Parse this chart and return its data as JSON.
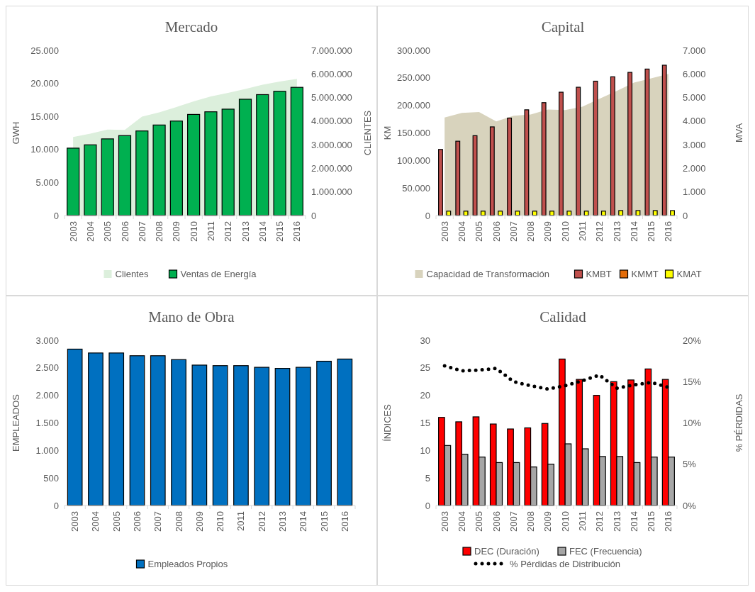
{
  "chart_data": [
    {
      "type": "bar",
      "title": "Mercado",
      "ylabel": "GWH",
      "y2label": "CLIENTES",
      "legend": "bottom",
      "categories": [
        "2003",
        "2004",
        "2005",
        "2006",
        "2007",
        "2008",
        "2009",
        "2010",
        "2011",
        "2012",
        "2013",
        "2014",
        "2015",
        "2016"
      ],
      "ylim": [
        0,
        25000
      ],
      "yticks": [
        {
          "value": 0,
          "label": "0"
        },
        {
          "value": 5000,
          "label": "5.000"
        },
        {
          "value": 10000,
          "label": "10.000"
        },
        {
          "value": 15000,
          "label": "15.000"
        },
        {
          "value": 20000,
          "label": "20.000"
        },
        {
          "value": 25000,
          "label": "25.000"
        }
      ],
      "y2lim": [
        0,
        7000000
      ],
      "y2ticks": [
        {
          "value": 0,
          "label": "0"
        },
        {
          "value": 1000000,
          "label": "1.000.000"
        },
        {
          "value": 2000000,
          "label": "2.000.000"
        },
        {
          "value": 3000000,
          "label": "3.000.000"
        },
        {
          "value": 4000000,
          "label": "4.000.000"
        },
        {
          "value": 5000000,
          "label": "5.000.000"
        },
        {
          "value": 6000000,
          "label": "6.000.000"
        },
        {
          "value": 7000000,
          "label": "7.000.000"
        }
      ],
      "series": [
        {
          "name": "Clientes",
          "type": "area",
          "axis": "y2",
          "color": "#dcefdc",
          "values": [
            3330000,
            3470000,
            3640000,
            3630000,
            4190000,
            4370000,
            4600000,
            4840000,
            5050000,
            5200000,
            5360000,
            5540000,
            5680000,
            5790000
          ]
        },
        {
          "name": "Ventas de Energía",
          "color": "#00b050",
          "values": [
            10200,
            10700,
            11600,
            12100,
            12800,
            13700,
            14300,
            15300,
            15700,
            16100,
            17600,
            18300,
            18800,
            19400
          ]
        }
      ]
    },
    {
      "type": "bar",
      "title": "Capital",
      "ylabel": "KM",
      "y2label": "MVA",
      "legend": "bottom",
      "categories": [
        "2003",
        "2004",
        "2005",
        "2006",
        "2007",
        "2008",
        "2009",
        "2010",
        "2011",
        "2012",
        "2013",
        "2014",
        "2015",
        "2016"
      ],
      "ylim": [
        0,
        300000
      ],
      "yticks": [
        {
          "value": 0,
          "label": "0"
        },
        {
          "value": 50000,
          "label": "50.000"
        },
        {
          "value": 100000,
          "label": "100.000"
        },
        {
          "value": 150000,
          "label": "150.000"
        },
        {
          "value": 200000,
          "label": "200.000"
        },
        {
          "value": 250000,
          "label": "250.000"
        },
        {
          "value": 300000,
          "label": "300.000"
        }
      ],
      "y2lim": [
        0,
        7000
      ],
      "y2ticks": [
        {
          "value": 0,
          "label": "0"
        },
        {
          "value": 1000,
          "label": "1.000"
        },
        {
          "value": 2000,
          "label": "2.000"
        },
        {
          "value": 3000,
          "label": "3.000"
        },
        {
          "value": 4000,
          "label": "4.000"
        },
        {
          "value": 5000,
          "label": "5.000"
        },
        {
          "value": 6000,
          "label": "6.000"
        },
        {
          "value": 7000,
          "label": "7.000"
        }
      ],
      "series": [
        {
          "name": "Capacidad de Transformación",
          "type": "area",
          "axis": "y2",
          "color": "#d8d3bd",
          "values": [
            4150,
            4350,
            4390,
            3990,
            4230,
            4280,
            4490,
            4470,
            4610,
            4950,
            5280,
            5630,
            5810,
            6000
          ]
        },
        {
          "name": "KMBT",
          "color": "#c0504d",
          "values": [
            120000,
            135000,
            145000,
            161000,
            177000,
            192000,
            205000,
            224000,
            233000,
            244000,
            252000,
            260000,
            266000,
            273000
          ]
        },
        {
          "name": "KMMT",
          "color": "#e36c09",
          "values": [
            null,
            null,
            null,
            null,
            null,
            null,
            null,
            null,
            null,
            null,
            null,
            null,
            null,
            null
          ]
        },
        {
          "name": "KMAT",
          "color": "#ffff00",
          "values": [
            8000,
            8000,
            8000,
            8000,
            8000,
            8000,
            8000,
            8000,
            8000,
            8000,
            9000,
            9000,
            9000,
            9000
          ]
        }
      ]
    },
    {
      "type": "bar",
      "title": "Mano de Obra",
      "ylabel": "EMPLEADOS",
      "legend": "bottom",
      "categories": [
        "2003",
        "2004",
        "2005",
        "2006",
        "2007",
        "2008",
        "2009",
        "2010",
        "2011",
        "2012",
        "2013",
        "2014",
        "2015",
        "2016"
      ],
      "ylim": [
        0,
        3000
      ],
      "yticks": [
        {
          "value": 0,
          "label": "0"
        },
        {
          "value": 500,
          "label": "500"
        },
        {
          "value": 1000,
          "label": "1.000"
        },
        {
          "value": 1500,
          "label": "1.500"
        },
        {
          "value": 2000,
          "label": "2.000"
        },
        {
          "value": 2500,
          "label": "2.500"
        },
        {
          "value": 3000,
          "label": "3.000"
        }
      ],
      "series": [
        {
          "name": "Empleados Propios",
          "color": "#0070c0",
          "values": [
            2840,
            2770,
            2770,
            2720,
            2720,
            2650,
            2550,
            2540,
            2540,
            2510,
            2490,
            2510,
            2620,
            2660
          ]
        }
      ]
    },
    {
      "type": "bar",
      "title": "Calidad",
      "ylabel": "ÍNDICES",
      "y2label": "% PÉRDIDAS",
      "legend": "bottom",
      "categories": [
        "2003",
        "2004",
        "2005",
        "2006",
        "2007",
        "2008",
        "2009",
        "2010",
        "2011",
        "2012",
        "2013",
        "2014",
        "2015",
        "2016"
      ],
      "ylim": [
        0,
        30
      ],
      "yticks": [
        0,
        5,
        10,
        15,
        20,
        25,
        30
      ],
      "y2lim": [
        0,
        20
      ],
      "y2ticks": [
        {
          "value": 0,
          "label": "0%"
        },
        {
          "value": 5,
          "label": "5%"
        },
        {
          "value": 10,
          "label": "10%"
        },
        {
          "value": 15,
          "label": "15%"
        },
        {
          "value": 20,
          "label": "20%"
        }
      ],
      "series": [
        {
          "name": "DEC (Duración)",
          "color": "#ff0000",
          "values": [
            16.0,
            15.2,
            16.1,
            14.8,
            13.9,
            14.1,
            14.9,
            26.6,
            22.9,
            20.0,
            22.5,
            22.8,
            24.8,
            22.9
          ]
        },
        {
          "name": "FEC (Frecuencia)",
          "color": "#a6a6a6",
          "values": [
            10.9,
            9.3,
            8.8,
            7.8,
            7.8,
            7.0,
            7.5,
            11.2,
            10.3,
            8.9,
            8.9,
            7.8,
            8.8,
            8.8
          ]
        },
        {
          "name": "% Pérdidas de Distribución",
          "type": "line",
          "axis": "y2",
          "color": "#000000",
          "line_style": "dotted",
          "marker": "none",
          "values": [
            16.9,
            16.3,
            16.4,
            16.6,
            15.0,
            14.5,
            14.1,
            14.5,
            15.1,
            15.8,
            14.2,
            14.6,
            14.9,
            14.3
          ]
        }
      ]
    }
  ]
}
